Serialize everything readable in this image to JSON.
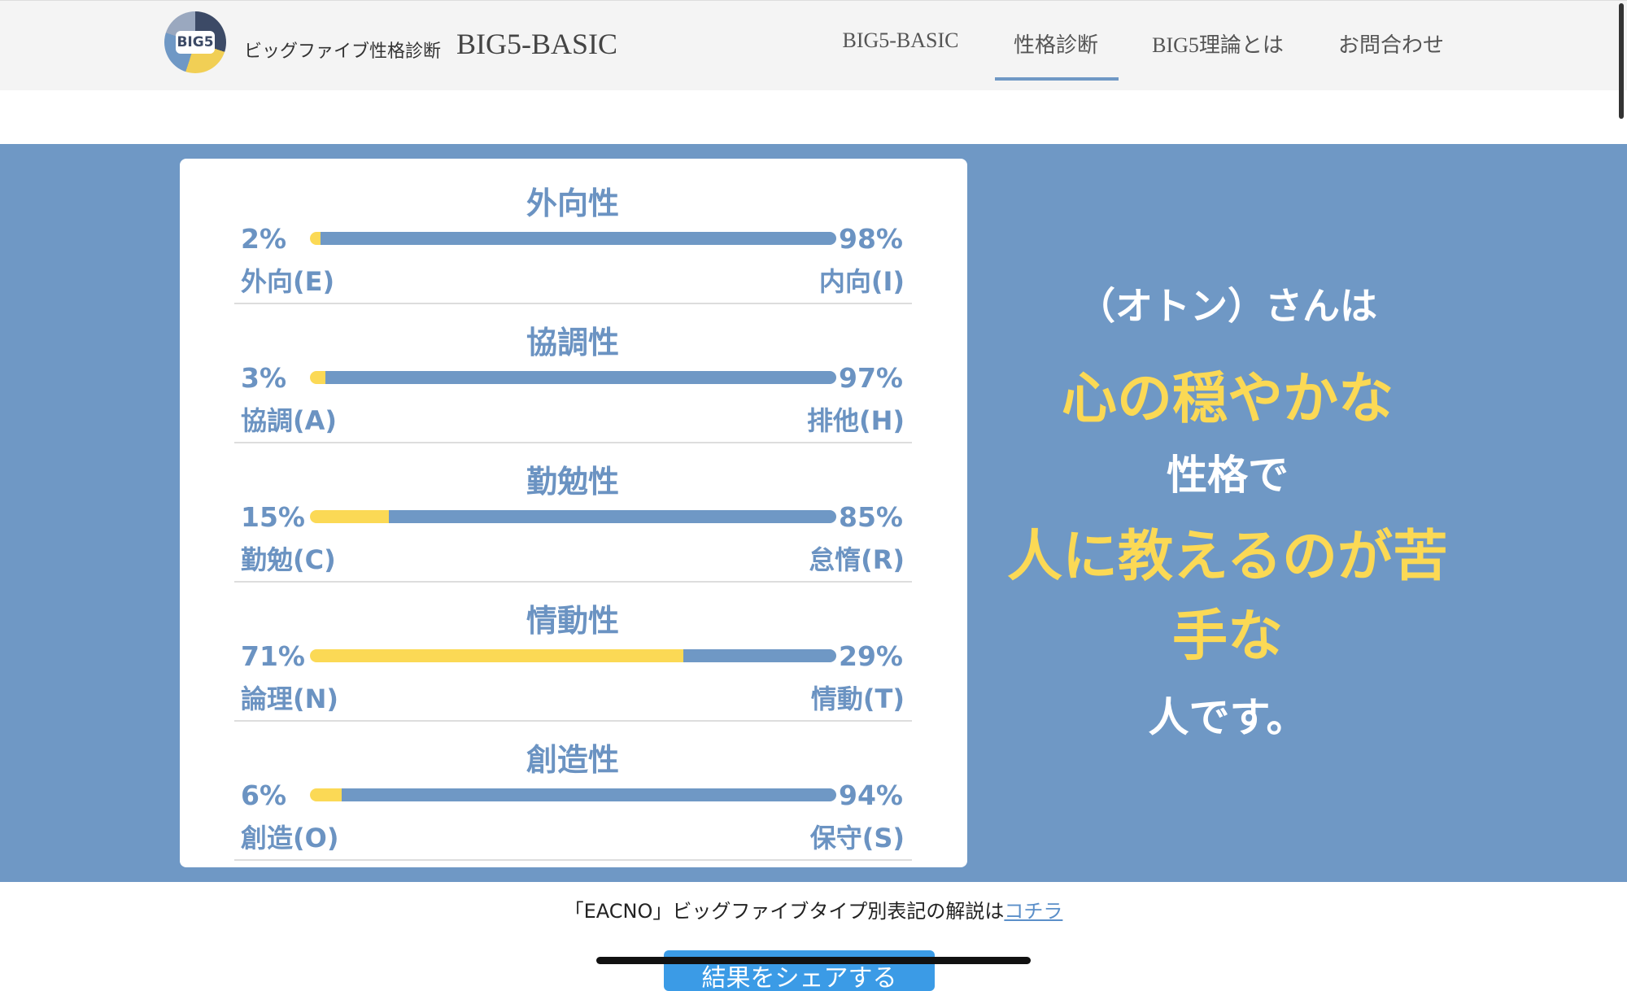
{
  "header": {
    "logo": "BIG5",
    "site_name": "ビッグファイブ性格診断",
    "brand": "BIG5-BASIC",
    "nav": [
      "BIG5-BASIC",
      "性格診断",
      "BIG5理論とは",
      "お問合わせ"
    ]
  },
  "traits": [
    {
      "title": "外向性",
      "left": {
        "value": 2,
        "label": "2%"
      },
      "right": {
        "value": 98,
        "label": "98%"
      },
      "left_name": "外向(E)",
      "right_name": "内向(I)"
    },
    {
      "title": "協調性",
      "left": {
        "value": 3,
        "label": "3%"
      },
      "right": {
        "value": 97,
        "label": "97%"
      },
      "left_name": "協調(A)",
      "right_name": "排他(H)"
    },
    {
      "title": "勤勉性",
      "left": {
        "value": 15,
        "label": "15%"
      },
      "right": {
        "value": 85,
        "label": "85%"
      },
      "left_name": "勤勉(C)",
      "right_name": "怠惰(R)"
    },
    {
      "title": "情動性",
      "left": {
        "value": 71,
        "label": "71%"
      },
      "right": {
        "value": 29,
        "label": "29%"
      },
      "left_name": "論理(N)",
      "right_name": "情動(T)"
    },
    {
      "title": "創造性",
      "left": {
        "value": 6,
        "label": "6%"
      },
      "right": {
        "value": 94,
        "label": "94%"
      },
      "left_name": "創造(O)",
      "right_name": "保守(S)"
    }
  ],
  "result": {
    "lines": [
      "（オトン）さんは",
      "心の穏やかな",
      "性格で",
      "人に教えるのが苦手な",
      "人です。"
    ]
  },
  "footer": {
    "note": "「EACNO」ビッグファイブタイプ別表記の解説は",
    "link": "コチラ",
    "button": "結果をシェアする"
  }
}
